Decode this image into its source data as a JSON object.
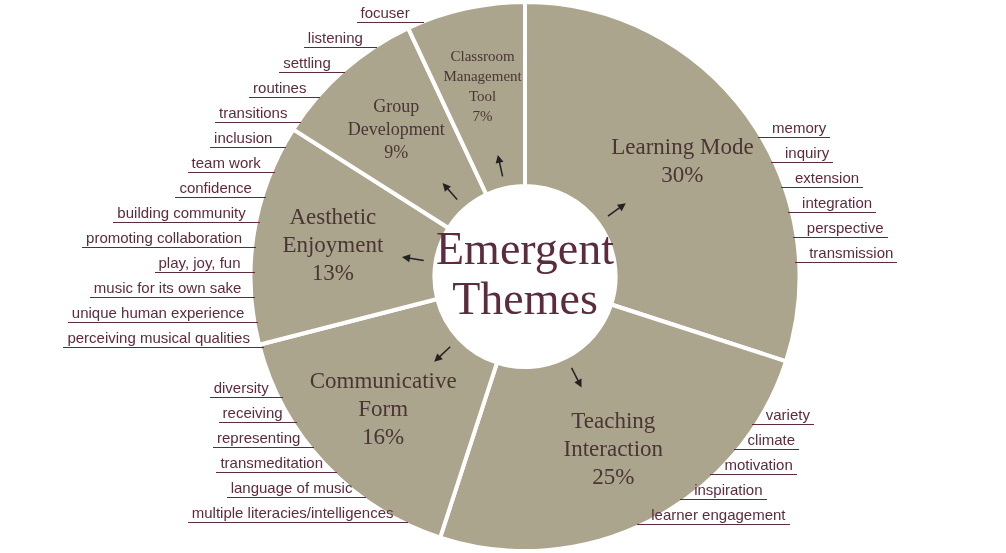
{
  "chart_data": {
    "type": "donut",
    "title": "Emergent Themes",
    "categories": [
      "Learning Mode",
      "Teaching Interaction",
      "Communicative Form",
      "Aesthetic Enjoyment",
      "Group Development",
      "Classroom Management Tool"
    ],
    "values": [
      30,
      25,
      16,
      13,
      9,
      7
    ],
    "value_labels": [
      "30%",
      "25%",
      "16%",
      "13%",
      "9%",
      "7%"
    ],
    "colors": [
      "#aca58d",
      "#aca58d",
      "#aca58d",
      "#aca58d",
      "#aca58d",
      "#aca58d"
    ],
    "annotations": [
      {
        "text": "memory",
        "x": "Learning Mode"
      },
      {
        "text": "inquiry",
        "x": "Learning Mode"
      },
      {
        "text": "extension",
        "x": "Learning Mode"
      },
      {
        "text": "integration",
        "x": "Learning Mode"
      },
      {
        "text": "perspective",
        "x": "Learning Mode"
      },
      {
        "text": "transmission",
        "x": "Learning Mode"
      },
      {
        "text": "variety",
        "x": "Teaching Interaction"
      },
      {
        "text": "climate",
        "x": "Teaching Interaction"
      },
      {
        "text": "motivation",
        "x": "Teaching Interaction"
      },
      {
        "text": "inspiration",
        "x": "Teaching Interaction"
      },
      {
        "text": "learner engagement",
        "x": "Teaching Interaction"
      },
      {
        "text": "diversity",
        "x": "Communicative Form"
      },
      {
        "text": "receiving",
        "x": "Communicative Form"
      },
      {
        "text": "representing",
        "x": "Communicative Form"
      },
      {
        "text": "transmeditation",
        "x": "Communicative Form"
      },
      {
        "text": "language of music",
        "x": "Communicative Form"
      },
      {
        "text": "multiple literacies/intelligences",
        "x": "Communicative Form"
      },
      {
        "text": "play, joy, fun",
        "x": "Aesthetic Enjoyment"
      },
      {
        "text": "music for its own sake",
        "x": "Aesthetic Enjoyment"
      },
      {
        "text": "unique human experience",
        "x": "Aesthetic Enjoyment"
      },
      {
        "text": "perceiving musical qualities",
        "x": "Aesthetic Enjoyment"
      },
      {
        "text": "inclusion",
        "x": "Group Development"
      },
      {
        "text": "team work",
        "x": "Group Development"
      },
      {
        "text": "confidence",
        "x": "Group Development"
      },
      {
        "text": "building community",
        "x": "Group Development"
      },
      {
        "text": "promoting collaboration",
        "x": "Group Development"
      },
      {
        "text": "focuser",
        "x": "Classroom Management Tool"
      },
      {
        "text": "listening",
        "x": "Classroom Management Tool"
      },
      {
        "text": "settling",
        "x": "Classroom Management Tool"
      },
      {
        "text": "routines",
        "x": "Classroom Management Tool"
      },
      {
        "text": "transitions",
        "x": "Classroom Management Tool"
      }
    ]
  }
}
